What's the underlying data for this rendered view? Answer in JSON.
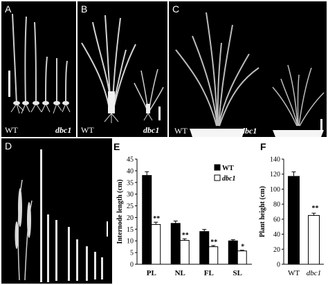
{
  "panels": {
    "a": {
      "label": "A",
      "left_caption": "WT",
      "right_caption": "dbc1"
    },
    "b": {
      "label": "B",
      "left_caption": "WT",
      "right_caption": "dbc1"
    },
    "c": {
      "label": "C",
      "left_caption": "WT",
      "right_caption": "dbc1"
    },
    "d": {
      "label": "D"
    },
    "e": {
      "label": "E"
    },
    "f": {
      "label": "F"
    }
  },
  "chart_data": [
    {
      "panel": "E",
      "type": "bar",
      "categories": [
        "PL",
        "NL",
        "FL",
        "SL"
      ],
      "series": [
        {
          "name": "WT",
          "values": [
            38,
            17.5,
            14,
            10
          ],
          "errors": [
            1.6,
            1.0,
            0.9,
            0.5
          ],
          "color": "#000000"
        },
        {
          "name": "dbc1",
          "values": [
            17,
            10.2,
            7.5,
            5.7
          ],
          "errors": [
            1.0,
            0.7,
            0.5,
            0.3
          ],
          "color": "#ffffff"
        }
      ],
      "significance": [
        "**",
        "**",
        "**",
        "*"
      ],
      "ylabel": "Internode length (cm)",
      "yticks": [
        "0",
        "5",
        "10",
        "15",
        "20",
        "25",
        "30",
        "35",
        "40",
        "45"
      ],
      "ylim": [
        0,
        45
      ],
      "legend": "top-right"
    },
    {
      "panel": "F",
      "type": "bar",
      "categories": [
        "WT",
        "dbc1"
      ],
      "values": [
        117,
        65
      ],
      "errors": [
        6,
        3
      ],
      "colors": [
        "#000000",
        "#ffffff"
      ],
      "significance": [
        "",
        "**"
      ],
      "ylabel": "Plant height (cm)",
      "yticks": [
        "0",
        "20",
        "40",
        "60",
        "80",
        "100",
        "120",
        "140"
      ],
      "ylim": [
        0,
        140
      ]
    }
  ]
}
